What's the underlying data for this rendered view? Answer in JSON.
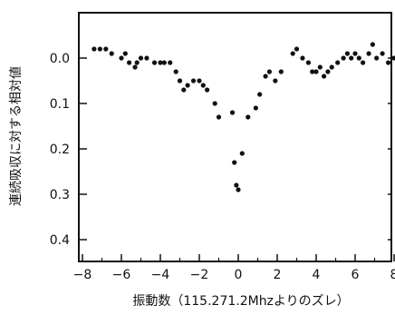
{
  "chart_data": {
    "type": "scatter",
    "title": "",
    "xlabel": "振動数（115.271.2Mhzよりのズレ）",
    "ylabel": "連続吸収に対する相対値",
    "xlim": [
      -8.4,
      8.4
    ],
    "ylim": [
      0.0,
      0.46
    ],
    "y_axis_inverted": true,
    "y_top": -0.1,
    "xticks": [
      -8,
      -6,
      -4,
      -2,
      0,
      2,
      4,
      6,
      8
    ],
    "xtick_labels": [
      "−8",
      "−6",
      "−4",
      "−2",
      "0",
      "2",
      "4",
      "6",
      "8"
    ],
    "yticks": [
      0.0,
      0.1,
      0.2,
      0.3,
      0.4
    ],
    "ytick_labels": [
      "0.0",
      "0.1",
      "0.2",
      "0.3",
      "0.4"
    ],
    "grid": false,
    "legend": "none",
    "marker_color": "#111111",
    "series": [
      {
        "points": [
          {
            "x": -7.4,
            "y": -0.02
          },
          {
            "x": -7.1,
            "y": -0.02
          },
          {
            "x": -6.8,
            "y": -0.02
          },
          {
            "x": -6.5,
            "y": -0.01
          },
          {
            "x": -6.0,
            "y": 0.0
          },
          {
            "x": -5.8,
            "y": -0.01
          },
          {
            "x": -5.6,
            "y": 0.01
          },
          {
            "x": -5.3,
            "y": 0.02
          },
          {
            "x": -5.2,
            "y": 0.01
          },
          {
            "x": -5.0,
            "y": 0.0
          },
          {
            "x": -4.7,
            "y": 0.0
          },
          {
            "x": -4.3,
            "y": 0.01
          },
          {
            "x": -4.0,
            "y": 0.01
          },
          {
            "x": -3.8,
            "y": 0.01
          },
          {
            "x": -3.5,
            "y": 0.01
          },
          {
            "x": -3.2,
            "y": 0.03
          },
          {
            "x": -3.0,
            "y": 0.05
          },
          {
            "x": -2.8,
            "y": 0.07
          },
          {
            "x": -2.6,
            "y": 0.06
          },
          {
            "x": -2.3,
            "y": 0.05
          },
          {
            "x": -2.0,
            "y": 0.05
          },
          {
            "x": -1.8,
            "y": 0.06
          },
          {
            "x": -1.6,
            "y": 0.07
          },
          {
            "x": -1.2,
            "y": 0.1
          },
          {
            "x": -1.0,
            "y": 0.13
          },
          {
            "x": -0.3,
            "y": 0.12
          },
          {
            "x": -0.2,
            "y": 0.23
          },
          {
            "x": -0.1,
            "y": 0.28
          },
          {
            "x": 0.0,
            "y": 0.29
          },
          {
            "x": 0.2,
            "y": 0.21
          },
          {
            "x": 0.5,
            "y": 0.13
          },
          {
            "x": 0.9,
            "y": 0.11
          },
          {
            "x": 1.1,
            "y": 0.08
          },
          {
            "x": 1.4,
            "y": 0.04
          },
          {
            "x": 1.6,
            "y": 0.03
          },
          {
            "x": 1.9,
            "y": 0.05
          },
          {
            "x": 2.2,
            "y": 0.03
          },
          {
            "x": 2.8,
            "y": -0.01
          },
          {
            "x": 3.0,
            "y": -0.02
          },
          {
            "x": 3.3,
            "y": 0.0
          },
          {
            "x": 3.6,
            "y": 0.01
          },
          {
            "x": 3.8,
            "y": 0.03
          },
          {
            "x": 4.0,
            "y": 0.03
          },
          {
            "x": 4.2,
            "y": 0.02
          },
          {
            "x": 4.4,
            "y": 0.04
          },
          {
            "x": 4.6,
            "y": 0.03
          },
          {
            "x": 4.8,
            "y": 0.02
          },
          {
            "x": 5.1,
            "y": 0.01
          },
          {
            "x": 5.4,
            "y": 0.0
          },
          {
            "x": 5.6,
            "y": -0.01
          },
          {
            "x": 5.8,
            "y": 0.0
          },
          {
            "x": 6.0,
            "y": -0.01
          },
          {
            "x": 6.2,
            "y": 0.0
          },
          {
            "x": 6.4,
            "y": 0.01
          },
          {
            "x": 6.7,
            "y": -0.01
          },
          {
            "x": 6.9,
            "y": -0.03
          },
          {
            "x": 7.1,
            "y": 0.0
          },
          {
            "x": 7.4,
            "y": -0.01
          },
          {
            "x": 7.7,
            "y": 0.01
          },
          {
            "x": 8.0,
            "y": 0.0
          },
          {
            "x": 8.2,
            "y": 0.01
          }
        ]
      }
    ]
  }
}
